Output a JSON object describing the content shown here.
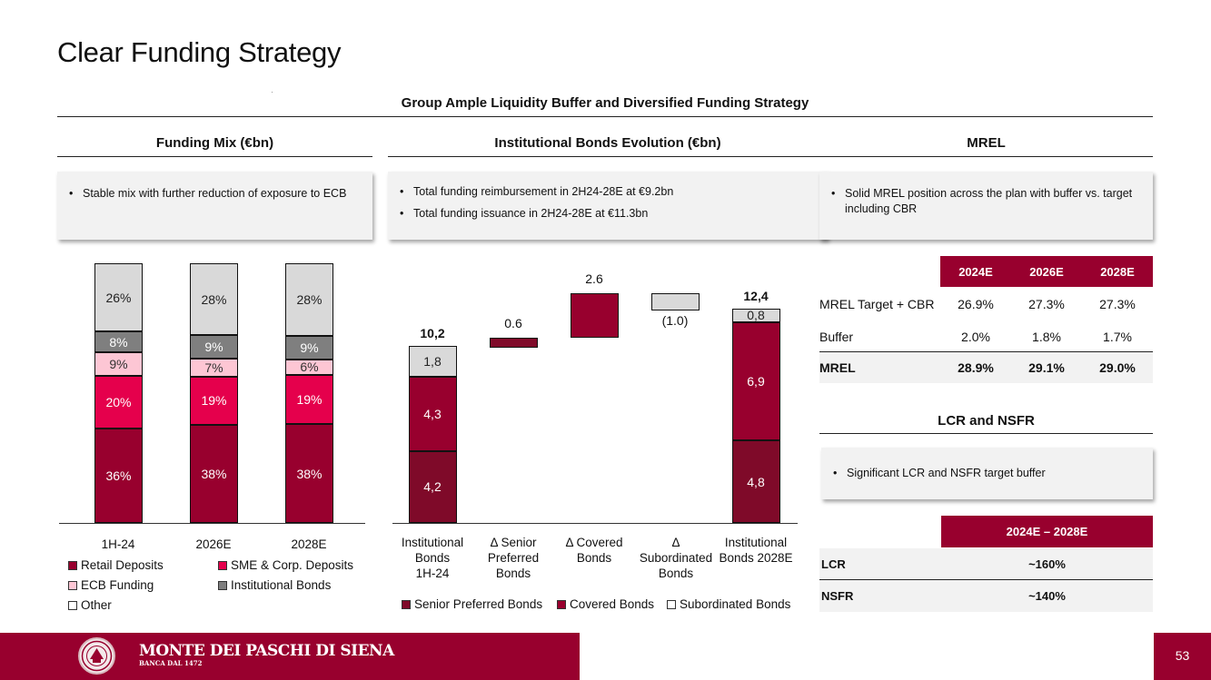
{
  "page": {
    "title": "Clear Funding Strategy",
    "heading": "Group Ample Liquidity Buffer and Diversified Funding Strategy",
    "page_number": "53"
  },
  "colors": {
    "brand": "#98002e",
    "sme": "#e5004c",
    "ecb": "#fdc6d4",
    "institutional": "#7f7f7f",
    "other": "#d9d9d9"
  },
  "funding_mix": {
    "title": "Funding Mix (€bn)",
    "bullets": [
      "Stable mix with further reduction of exposure to ECB"
    ],
    "legend": [
      "Retail Deposits",
      "SME & Corp. Deposits",
      "ECB Funding",
      "Institutional Bonds",
      "Other"
    ]
  },
  "bonds": {
    "title": "Institutional Bonds Evolution (€bn)",
    "bullets": [
      "Total funding reimbursement in 2H24-28E at €9.2bn",
      "Total funding issuance in 2H24-28E at €11.3bn"
    ],
    "legend": [
      "Senior Preferred Bonds",
      "Covered Bonds",
      "Subordinated Bonds"
    ]
  },
  "mrel": {
    "title": "MREL",
    "bullets": [
      "Solid MREL position across the plan with buffer vs. target including CBR"
    ],
    "columns": [
      "2024E",
      "2026E",
      "2028E"
    ],
    "rows": [
      {
        "label": "MREL Target + CBR",
        "values": [
          "26.9%",
          "27.3%",
          "27.3%"
        ]
      },
      {
        "label": "Buffer",
        "values": [
          "2.0%",
          "1.8%",
          "1.7%"
        ]
      },
      {
        "label": "MREL",
        "values": [
          "28.9%",
          "29.1%",
          "29.0%"
        ]
      }
    ]
  },
  "lcr": {
    "title": "LCR and NSFR",
    "bullets": [
      "Significant LCR and NSFR target buffer"
    ],
    "column": "2024E – 2028E",
    "rows": [
      {
        "label": "LCR",
        "value": "~160%"
      },
      {
        "label": "NSFR",
        "value": "~140%"
      }
    ]
  },
  "footer": {
    "bank_name": "MONTE DEI PASCHI DI SIENA",
    "bank_sub": "BANCA DAL 1472"
  },
  "chart_data": [
    {
      "type": "bar",
      "stacked": true,
      "title": "Funding Mix (€bn)",
      "categories": [
        "1H-24",
        "2026E",
        "2028E"
      ],
      "unit": "%",
      "series": [
        {
          "name": "Retail Deposits",
          "values": [
            36,
            38,
            38
          ],
          "labels": [
            "36%",
            "38%",
            "38%"
          ]
        },
        {
          "name": "SME & Corp. Deposits",
          "values": [
            20,
            19,
            19
          ],
          "labels": [
            "20%",
            "19%",
            "19%"
          ]
        },
        {
          "name": "ECB Funding",
          "values": [
            9,
            7,
            6
          ],
          "labels": [
            "9%",
            "7%",
            "6%"
          ]
        },
        {
          "name": "Institutional Bonds",
          "values": [
            8,
            9,
            9
          ],
          "labels": [
            "8%",
            "9%",
            "9%"
          ]
        },
        {
          "name": "Other",
          "values": [
            26,
            28,
            28
          ],
          "labels": [
            "26%",
            "28%",
            "28%"
          ]
        }
      ]
    },
    {
      "type": "bar",
      "subtype": "waterfall",
      "title": "Institutional Bonds Evolution (€bn)",
      "categories": [
        "Institutional Bonds 1H-24",
        "Δ Senior Preferred Bonds",
        "Δ Covered Bonds",
        "Δ Subordinated Bonds",
        "Institutional Bonds 2028E"
      ],
      "category_lines": [
        [
          "Institutional",
          "Bonds",
          "1H-24"
        ],
        [
          "Δ Senior",
          "Preferred",
          "Bonds"
        ],
        [
          "Δ Covered",
          "Bonds"
        ],
        [
          "Δ",
          "Subordinated",
          "Bonds"
        ],
        [
          "Institutional",
          "Bonds 2028E"
        ]
      ],
      "totals": [
        {
          "category": "Institutional Bonds 1H-24",
          "total": 10.2,
          "total_label": "10,2",
          "stack": [
            {
              "name": "Senior Preferred Bonds",
              "value": 4.2,
              "label": "4,2"
            },
            {
              "name": "Covered Bonds",
              "value": 4.3,
              "label": "4,3"
            },
            {
              "name": "Subordinated Bonds",
              "value": 1.8,
              "label": "1,8"
            }
          ]
        },
        {
          "category": "Institutional Bonds 2028E",
          "total": 12.4,
          "total_label": "12,4",
          "stack": [
            {
              "name": "Senior Preferred Bonds",
              "value": 4.8,
              "label": "4,8"
            },
            {
              "name": "Covered Bonds",
              "value": 6.9,
              "label": "6,9"
            },
            {
              "name": "Subordinated Bonds",
              "value": 0.8,
              "label": "0,8"
            }
          ]
        }
      ],
      "deltas": [
        {
          "category": "Δ Senior Preferred Bonds",
          "series": "Senior Preferred Bonds",
          "value": 0.6,
          "label": "0.6"
        },
        {
          "category": "Δ Covered Bonds",
          "series": "Covered Bonds",
          "value": 2.6,
          "label": "2.6"
        },
        {
          "category": "Δ Subordinated Bonds",
          "series": "Subordinated Bonds",
          "value": -1.0,
          "label": "(1.0)"
        }
      ]
    }
  ]
}
